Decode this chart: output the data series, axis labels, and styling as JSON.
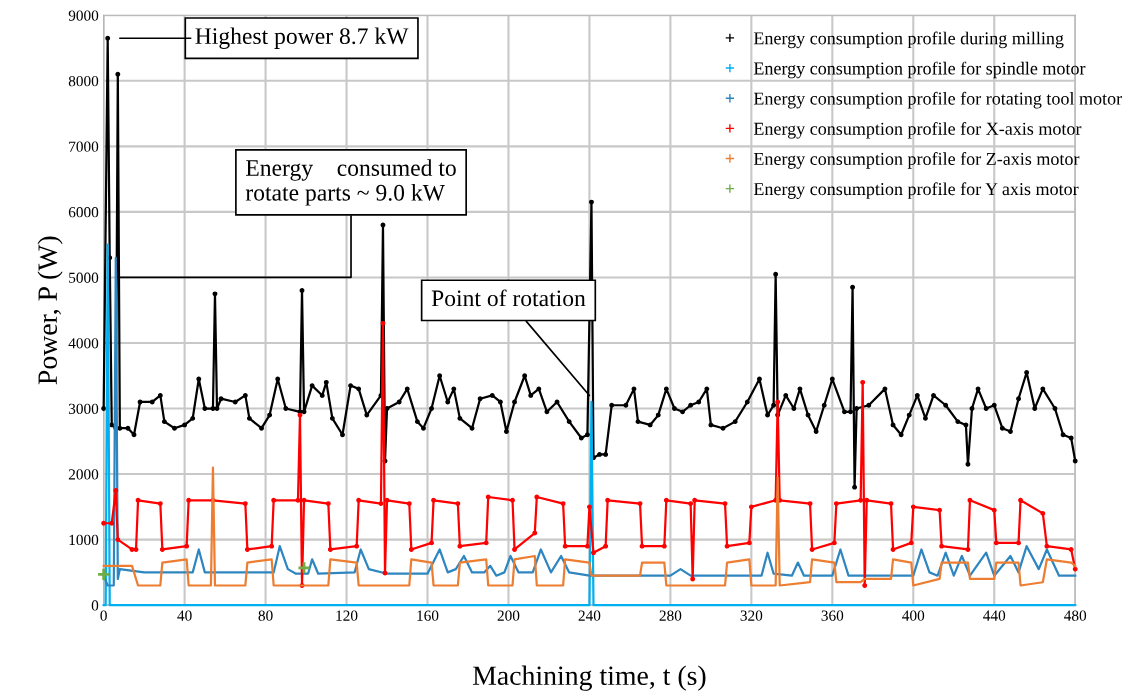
{
  "chart_data": {
    "type": "line",
    "xlabel": "Machining time, t (s)",
    "ylabel": "Power, P (W)",
    "xlim": [
      0,
      480
    ],
    "xticks": [
      0,
      40,
      80,
      120,
      160,
      200,
      240,
      280,
      320,
      360,
      400,
      440,
      480
    ],
    "ylim": [
      0,
      9000
    ],
    "yticks": [
      0,
      1000,
      2000,
      3000,
      4000,
      5000,
      6000,
      7000,
      8000,
      9000
    ],
    "grid": true,
    "legend": "top right",
    "series": [
      {
        "name": "Energy consumption profile during milling",
        "color": "#000000",
        "marker": "circle",
        "x": [
          0,
          2,
          3,
          4,
          6,
          7,
          8,
          12,
          15,
          18,
          24,
          28,
          30,
          35,
          40,
          44,
          47,
          50,
          54,
          55,
          56,
          58,
          65,
          70,
          72,
          78,
          82,
          86,
          90,
          97,
          98,
          99,
          103,
          108,
          110,
          113,
          118,
          122,
          126,
          130,
          137,
          138,
          139,
          140,
          146,
          150,
          155,
          158,
          162,
          166,
          170,
          173,
          176,
          182,
          186,
          192,
          196,
          199,
          203,
          208,
          211,
          215,
          219,
          224,
          230,
          236,
          239,
          241,
          242,
          245,
          248,
          251,
          258,
          262,
          264,
          270,
          274,
          278,
          282,
          286,
          290,
          294,
          298,
          300,
          306,
          312,
          318,
          324,
          328,
          331,
          332,
          333,
          337,
          341,
          344,
          348,
          352,
          356,
          360,
          366,
          369,
          370,
          371,
          372,
          378,
          386,
          390,
          394,
          398,
          402,
          406,
          410,
          416,
          422,
          426,
          427,
          429,
          432,
          436,
          440,
          444,
          448,
          452,
          456,
          460,
          464,
          470,
          474,
          478,
          480
        ],
        "values": [
          3000,
          8650,
          5300,
          2750,
          2700,
          8100,
          2700,
          2700,
          2600,
          3100,
          3100,
          3200,
          2800,
          2700,
          2750,
          2850,
          3450,
          3000,
          3000,
          4750,
          3000,
          3150,
          3100,
          3200,
          2850,
          2700,
          2900,
          3450,
          3000,
          2950,
          4800,
          2950,
          3350,
          3200,
          3400,
          2850,
          2600,
          3350,
          3300,
          2900,
          3200,
          5800,
          2200,
          3000,
          3100,
          3300,
          2800,
          2700,
          3000,
          3500,
          3100,
          3300,
          2850,
          2700,
          3150,
          3200,
          3100,
          2650,
          3100,
          3500,
          3200,
          3300,
          2950,
          3100,
          2800,
          2550,
          2600,
          6150,
          2250,
          2300,
          2300,
          3050,
          3050,
          3300,
          2800,
          2750,
          2900,
          3300,
          3000,
          2950,
          3050,
          3100,
          3300,
          2750,
          2700,
          2800,
          3100,
          3450,
          2900,
          3050,
          5050,
          2900,
          3200,
          3000,
          3300,
          2900,
          2650,
          3050,
          3450,
          2950,
          2950,
          4850,
          1800,
          3000,
          3050,
          3300,
          2750,
          2600,
          2900,
          3200,
          2850,
          3200,
          3050,
          2800,
          2750,
          2150,
          3000,
          3300,
          3000,
          3050,
          2700,
          2650,
          3150,
          3550,
          3000,
          3300,
          3000,
          2600,
          2550,
          2200
        ]
      },
      {
        "name": "Energy consumption profile for spindle motor",
        "color": "#00b0f0",
        "marker": "none",
        "x": [
          0,
          1,
          2,
          3,
          240,
          241,
          242,
          480
        ],
        "values": [
          0,
          0,
          5500,
          0,
          0,
          3100,
          0,
          0
        ]
      },
      {
        "name": "Energy consumption profile for rotating tool motor",
        "color": "#2e86c1",
        "marker": "none",
        "x": [
          0,
          2,
          5,
          6,
          7,
          8,
          20,
          44,
          47,
          50,
          84,
          87,
          91,
          95,
          101,
          103,
          106,
          124,
          127,
          131,
          140,
          160,
          166,
          170,
          174,
          178,
          182,
          188,
          191,
          194,
          198,
          201,
          205,
          212,
          216,
          221,
          226,
          230,
          240,
          280,
          285,
          290,
          325,
          328,
          331,
          340,
          343,
          346,
          360,
          364,
          368,
          400,
          404,
          408,
          412,
          416,
          420,
          424,
          428,
          436,
          440,
          448,
          452,
          456,
          462,
          466,
          472,
          480
        ],
        "values": [
          450,
          300,
          300,
          5300,
          400,
          550,
          500,
          500,
          850,
          500,
          500,
          900,
          550,
          480,
          480,
          700,
          480,
          500,
          850,
          550,
          480,
          480,
          850,
          500,
          550,
          750,
          500,
          500,
          600,
          450,
          500,
          750,
          500,
          500,
          850,
          500,
          750,
          500,
          450,
          450,
          550,
          450,
          450,
          800,
          480,
          450,
          650,
          450,
          450,
          850,
          450,
          450,
          850,
          500,
          450,
          800,
          450,
          750,
          450,
          800,
          450,
          750,
          500,
          900,
          550,
          850,
          450,
          450
        ]
      },
      {
        "name": "Energy consumption profile for X-axis motor",
        "color": "#ff0000",
        "marker": "circle",
        "x": [
          0,
          4,
          6,
          7,
          14,
          16,
          17,
          28,
          29,
          41,
          42,
          54,
          70,
          71,
          83,
          84,
          96,
          97,
          98,
          99,
          111,
          112,
          125,
          126,
          137,
          138,
          139,
          140,
          151,
          152,
          162,
          163,
          175,
          176,
          189,
          190,
          202,
          203,
          213,
          214,
          227,
          228,
          239,
          240,
          242,
          248,
          249,
          265,
          266,
          277,
          278,
          290,
          291,
          292,
          307,
          308,
          319,
          320,
          332,
          333,
          334,
          349,
          350,
          361,
          362,
          374,
          375,
          376,
          377,
          389,
          390,
          399,
          400,
          413,
          414,
          427,
          428,
          440,
          441,
          452,
          453,
          464,
          466,
          478,
          480
        ],
        "values": [
          1250,
          1250,
          1750,
          1000,
          850,
          850,
          1600,
          1550,
          850,
          900,
          1600,
          1600,
          1550,
          850,
          900,
          1600,
          1600,
          2900,
          300,
          1600,
          1550,
          850,
          900,
          1600,
          1550,
          4300,
          490,
          1600,
          1550,
          850,
          950,
          1600,
          1550,
          900,
          950,
          1650,
          1600,
          850,
          1100,
          1650,
          1550,
          900,
          900,
          1500,
          800,
          900,
          1600,
          1550,
          900,
          900,
          1600,
          1550,
          400,
          1600,
          1550,
          900,
          950,
          1500,
          1600,
          3100,
          1600,
          1550,
          850,
          950,
          1550,
          1600,
          3400,
          300,
          1600,
          1550,
          850,
          950,
          1500,
          1450,
          900,
          850,
          1600,
          1450,
          950,
          950,
          1600,
          1400,
          900,
          850,
          550
        ]
      },
      {
        "name": "Energy consumption profile for Z-axis motor",
        "color": "#ed7d31",
        "marker": "none",
        "x": [
          0,
          14,
          17,
          28,
          29,
          41,
          42,
          53,
          54,
          55,
          70,
          71,
          83,
          84,
          111,
          112,
          125,
          126,
          151,
          152,
          162,
          163,
          175,
          176,
          189,
          190,
          202,
          203,
          213,
          214,
          227,
          228,
          240,
          241,
          249,
          265,
          266,
          277,
          278,
          307,
          308,
          319,
          320,
          332,
          333,
          334,
          349,
          350,
          361,
          362,
          374,
          376,
          389,
          390,
          399,
          400,
          413,
          414,
          427,
          428,
          440,
          441,
          452,
          453,
          464,
          466,
          478,
          480
        ],
        "values": [
          600,
          600,
          300,
          300,
          650,
          700,
          300,
          300,
          2100,
          300,
          300,
          650,
          700,
          300,
          300,
          700,
          650,
          300,
          300,
          700,
          650,
          300,
          300,
          650,
          700,
          300,
          300,
          700,
          750,
          300,
          300,
          700,
          650,
          450,
          450,
          450,
          650,
          650,
          300,
          300,
          650,
          700,
          300,
          300,
          1950,
          300,
          350,
          700,
          650,
          350,
          350,
          400,
          400,
          700,
          650,
          300,
          400,
          650,
          650,
          400,
          400,
          650,
          650,
          300,
          350,
          700,
          650,
          600
        ]
      },
      {
        "name": "Energy consumption profile for Y axis motor",
        "type": "scatter",
        "color": "#70ad47",
        "marker": "cross",
        "x": [
          0,
          99
        ],
        "values": [
          470,
          570
        ]
      }
    ],
    "annotations": [
      "Highest power 8.7 kW",
      {
        "text": "Energy    consumed to\nrotate parts ~ 9.0 kW",
        "x": 7,
        "y": 5000
      },
      {
        "text": "Point of rotation",
        "x": 240,
        "y": 3200
      }
    ]
  }
}
